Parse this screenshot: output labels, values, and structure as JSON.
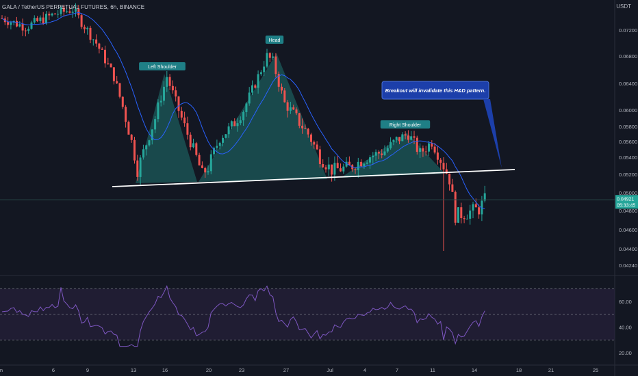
{
  "header": {
    "symbol_line": "GALA / TetherUS PERPETUAL FUTURES, 6h, BINANCE",
    "currency": "USDT"
  },
  "price_badge": {
    "price": "0.04921",
    "countdown": "05:33:45"
  },
  "colors": {
    "background": "#131722",
    "up": "#26a69a",
    "down": "#ef5350",
    "ma": "#2962ff",
    "pattern_fill": "#26a69a",
    "neckline": "#ffffff",
    "rsi_line": "#7e57c2",
    "rsi_band": "#2a2140",
    "label_bg": "#1f7f86",
    "callout_bg": "#1c3faa",
    "axis_text": "#b2b5be"
  },
  "annotations": {
    "left_shoulder": "Left Shoulder",
    "head": "Head",
    "right_shoulder": "Right Shoulder",
    "callout": "Breakout will invalidate this H&D pattern."
  },
  "chart_data": {
    "type": "candlestick",
    "title": "GALA / TetherUS PERPETUAL FUTURES, 6h, BINANCE",
    "y_axis": {
      "unit": "USDT",
      "ticks": [
        "0.07200",
        "0.06800",
        "0.06400",
        "0.06000",
        "0.05800",
        "0.05600",
        "0.05400",
        "0.05200",
        "0.05000",
        "0.04800",
        "0.04600",
        "0.04400",
        "0.04240"
      ]
    },
    "x_axis": {
      "ticks": [
        "n",
        "6",
        "9",
        "13",
        "16",
        "20",
        "23",
        "27",
        "Jul",
        "4",
        "7",
        "11",
        "14",
        "18",
        "21",
        "25"
      ]
    },
    "last_price": 0.04921,
    "series_note": "price candles with moving average, head-and-shoulders pattern",
    "rsi": {
      "ticks": [
        "60.00",
        "40.00",
        "20.00"
      ],
      "upper_band": 70,
      "lower_band": 30
    }
  }
}
